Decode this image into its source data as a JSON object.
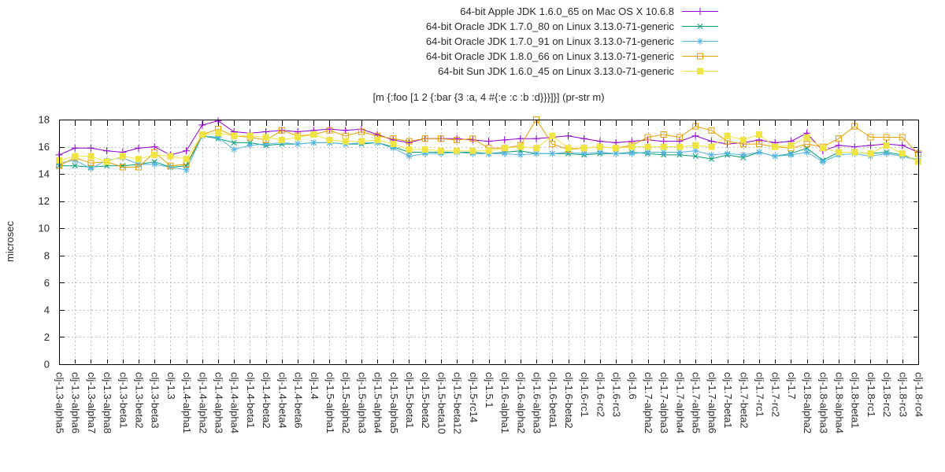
{
  "chart_data": {
    "type": "line",
    "title": "[m {:foo [1 2 {:bar {3 :a, 4 #{:e :c :b :d}}}]}] (pr-str m)",
    "xlabel": "",
    "ylabel": "microsec",
    "ylim": [
      0,
      18
    ],
    "ytick_step": 2,
    "grid": true,
    "legend_position": "top-outside-right",
    "categories": [
      "clj-1.3-alpha5",
      "clj-1.3-alpha6",
      "clj-1.3-alpha7",
      "clj-1.3-alpha8",
      "clj-1.3-beta1",
      "clj-1.3-beta2",
      "clj-1.3-beta3",
      "clj-1.3",
      "clj-1.4-alpha1",
      "clj-1.4-alpha2",
      "clj-1.4-alpha3",
      "clj-1.4-alpha4",
      "clj-1.4-beta1",
      "clj-1.4-beta2",
      "clj-1.4-beta4",
      "clj-1.4-beta6",
      "clj-1.4",
      "clj-1.5-alpha1",
      "clj-1.5-alpha2",
      "clj-1.5-alpha3",
      "clj-1.5-alpha4",
      "clj-1.5-alpha5",
      "clj-1.5-beta1",
      "clj-1.5-beta2",
      "clj-1.5-beta10",
      "clj-1.5-beta12",
      "clj-1.5-rc14",
      "clj-1.5.1",
      "clj-1.6-alpha1",
      "clj-1.6-alpha2",
      "clj-1.6-alpha3",
      "clj-1.6-beta1",
      "clj-1.6-beta2",
      "clj-1.6-rc1",
      "clj-1.6-rc2",
      "clj-1.6-rc3",
      "clj-1.6",
      "clj-1.7-alpha2",
      "clj-1.7-alpha3",
      "clj-1.7-alpha4",
      "clj-1.7-alpha5",
      "clj-1.7-alpha6",
      "clj-1.7-beta1",
      "clj-1.7-beta2",
      "clj-1.7-rc1",
      "clj-1.7-rc2",
      "clj-1.7",
      "clj-1.8-alpha2",
      "clj-1.8-alpha3",
      "clj-1.8-alpha4",
      "clj-1.8-beta1",
      "clj-1.8-rc1",
      "clj-1.8-rc2",
      "clj-1.8-rc3",
      "clj-1.8-rc4"
    ],
    "series": [
      {
        "name": "64-bit Apple JDK 1.6.0_65 on Mac OS X 10.6.8",
        "color": "#9400d3",
        "marker": "plus",
        "values": [
          15.4,
          15.9,
          15.9,
          15.7,
          15.6,
          15.9,
          16.0,
          15.4,
          15.7,
          17.6,
          17.9,
          17.1,
          17.0,
          17.1,
          17.2,
          17.1,
          17.2,
          17.3,
          17.2,
          17.3,
          16.9,
          16.5,
          16.3,
          16.6,
          16.6,
          16.6,
          16.5,
          16.4,
          16.5,
          16.6,
          16.6,
          16.7,
          16.8,
          16.6,
          16.4,
          16.3,
          16.4,
          16.5,
          16.4,
          16.4,
          16.8,
          16.4,
          16.2,
          16.3,
          16.5,
          16.3,
          16.4,
          17.0,
          15.7,
          16.1,
          16.0,
          16.1,
          16.2,
          16.1,
          15.6
        ]
      },
      {
        "name": "64-bit Oracle JDK 1.7.0_80 on Linux 3.13.0-71-generic",
        "color": "#009e73",
        "marker": "x",
        "values": [
          14.6,
          14.6,
          14.5,
          14.6,
          14.6,
          14.7,
          14.9,
          14.5,
          14.6,
          16.8,
          16.6,
          16.3,
          16.3,
          16.1,
          16.2,
          16.2,
          16.3,
          16.3,
          16.2,
          16.2,
          16.3,
          16.0,
          15.6,
          15.6,
          15.6,
          15.6,
          15.6,
          15.5,
          15.6,
          15.7,
          15.5,
          15.5,
          15.5,
          15.4,
          15.5,
          15.5,
          15.6,
          15.5,
          15.4,
          15.4,
          15.3,
          15.1,
          15.4,
          15.2,
          15.6,
          15.3,
          15.5,
          15.9,
          15.0,
          15.6,
          15.6,
          15.5,
          15.6,
          15.4,
          15.0
        ]
      },
      {
        "name": "64-bit Oracle JDK 1.7.0_91 on Linux 3.13.0-71-generic",
        "color": "#56b4e9",
        "marker": "star",
        "values": [
          14.8,
          15.0,
          14.4,
          15.0,
          15.2,
          14.7,
          14.7,
          14.5,
          14.3,
          16.8,
          16.7,
          15.8,
          16.1,
          16.2,
          16.3,
          16.2,
          16.3,
          16.3,
          16.2,
          16.3,
          16.3,
          15.9,
          15.3,
          15.5,
          15.5,
          15.6,
          15.5,
          15.5,
          15.5,
          15.4,
          15.5,
          15.5,
          15.6,
          15.5,
          15.6,
          15.5,
          15.5,
          15.6,
          15.6,
          15.6,
          15.7,
          15.4,
          15.5,
          15.4,
          15.6,
          15.3,
          15.4,
          15.6,
          14.9,
          15.4,
          15.5,
          15.3,
          15.5,
          15.3,
          15.0
        ]
      },
      {
        "name": "64-bit Oracle JDK 1.8.0_66 on Linux 3.13.0-71-generic",
        "color": "#e69f00",
        "marker": "square-open",
        "values": [
          14.6,
          15.2,
          14.8,
          14.9,
          14.5,
          14.5,
          15.6,
          14.6,
          14.7,
          16.9,
          17.3,
          16.8,
          16.7,
          16.5,
          17.2,
          16.8,
          16.9,
          17.2,
          16.8,
          17.1,
          16.8,
          16.6,
          16.4,
          16.6,
          16.6,
          16.5,
          16.6,
          15.9,
          15.9,
          16.1,
          18.0,
          16.2,
          15.8,
          15.9,
          16.0,
          15.9,
          16.1,
          16.7,
          16.9,
          16.7,
          17.5,
          17.2,
          16.4,
          16.2,
          16.2,
          16.0,
          15.9,
          16.2,
          16.0,
          16.6,
          17.5,
          16.7,
          16.7,
          16.7,
          15.5
        ]
      },
      {
        "name": "64-bit Sun JDK 1.6.0_45 on Linux 3.13.0-71-generic",
        "color": "#f0e442",
        "marker": "square-filled",
        "values": [
          15.0,
          15.3,
          15.3,
          14.9,
          15.3,
          15.1,
          15.4,
          15.3,
          15.1,
          16.9,
          17.0,
          16.8,
          16.8,
          16.7,
          16.5,
          16.7,
          16.9,
          16.5,
          16.4,
          16.4,
          16.5,
          16.2,
          15.8,
          15.8,
          15.7,
          15.7,
          15.7,
          15.7,
          15.9,
          16.0,
          15.9,
          16.8,
          15.9,
          15.9,
          16.0,
          15.9,
          16.0,
          16.0,
          16.0,
          16.0,
          16.1,
          16.0,
          16.8,
          16.5,
          16.9,
          16.0,
          16.1,
          16.7,
          15.9,
          15.6,
          15.6,
          15.5,
          16.1,
          15.5,
          14.9
        ]
      }
    ]
  }
}
